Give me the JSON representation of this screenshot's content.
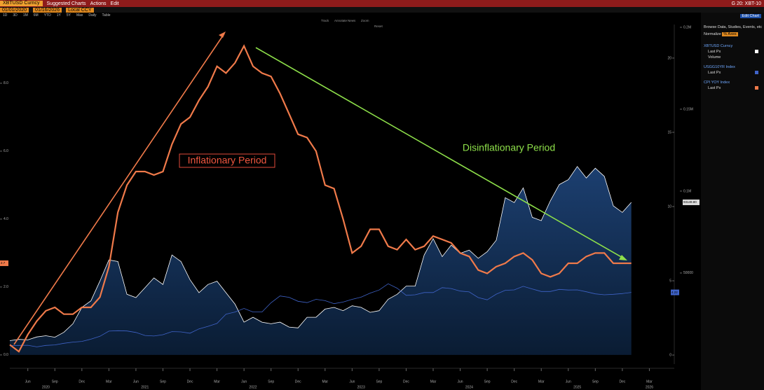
{
  "toolbar": {
    "security": "XBTUSD Curncy",
    "menus": [
      "Suggested Charts",
      "Actions",
      "Edit"
    ],
    "right": "G 20: XBT-10"
  },
  "dates": {
    "start": "01/01/2020",
    "end": "01/16/2026",
    "currency": "Local CCY"
  },
  "periods": [
    "1D",
    "3D",
    "1M",
    "6M",
    "YTD",
    "1Y",
    "5Y",
    "Max",
    "Daily",
    "Table"
  ],
  "chart_tools": [
    "Track",
    "Annotate",
    "News",
    "Zoom",
    "Reset"
  ],
  "panel": {
    "edit": "Edit Chart",
    "browse": "Browse Data, Studies, Events, etc",
    "normalize": "Normalize",
    "axes": "% Axes",
    "fields": [
      [
        "Last Px",
        "Volume"
      ],
      [
        "Last Px"
      ],
      [
        "Last Px"
      ]
    ]
  },
  "chart_data": {
    "type": "line",
    "annotations": [
      "Inflationary Period",
      "Disinflationary Period"
    ],
    "x": [
      "2020-04",
      "2020-05",
      "2020-06",
      "2020-07",
      "2020-08",
      "2020-09",
      "2020-10",
      "2020-11",
      "2020-12",
      "2021-01",
      "2021-02",
      "2021-03",
      "2021-04",
      "2021-05",
      "2021-06",
      "2021-07",
      "2021-08",
      "2021-09",
      "2021-10",
      "2021-11",
      "2021-12",
      "2022-01",
      "2022-02",
      "2022-03",
      "2022-04",
      "2022-05",
      "2022-06",
      "2022-07",
      "2022-08",
      "2022-09",
      "2022-10",
      "2022-11",
      "2022-12",
      "2023-01",
      "2023-02",
      "2023-03",
      "2023-04",
      "2023-05",
      "2023-06",
      "2023-07",
      "2023-08",
      "2023-09",
      "2023-10",
      "2023-11",
      "2023-12",
      "2024-01",
      "2024-02",
      "2024-03",
      "2024-04",
      "2024-05",
      "2024-06",
      "2024-07",
      "2024-08",
      "2024-09",
      "2024-10",
      "2024-11",
      "2024-12",
      "2025-01",
      "2025-02",
      "2025-03",
      "2025-04",
      "2025-05",
      "2025-06",
      "2025-07",
      "2025-08",
      "2025-09",
      "2025-10",
      "2025-11",
      "2025-12",
      "2026-01"
    ],
    "xlim": [
      "2020-04",
      "2026-06"
    ],
    "xticks": [
      {
        "value": "2020-06",
        "label": "Jun"
      },
      {
        "value": "2020-09",
        "label": "Sep"
      },
      {
        "value": "2020-12",
        "label": "Dec"
      },
      {
        "value": "2021-03",
        "label": "Mar"
      },
      {
        "value": "2021-06",
        "label": "Jun"
      },
      {
        "value": "2021-09",
        "label": "Sep"
      },
      {
        "value": "2021-12",
        "label": "Dec"
      },
      {
        "value": "2022-03",
        "label": "Mar"
      },
      {
        "value": "2022-06",
        "label": "Jun"
      },
      {
        "value": "2022-09",
        "label": "Sep"
      },
      {
        "value": "2022-12",
        "label": "Dec"
      },
      {
        "value": "2023-03",
        "label": "Mar"
      },
      {
        "value": "2023-06",
        "label": "Jun"
      },
      {
        "value": "2023-09",
        "label": "Sep"
      },
      {
        "value": "2023-12",
        "label": "Dec"
      },
      {
        "value": "2024-03",
        "label": "Mar"
      },
      {
        "value": "2024-06",
        "label": "Jun"
      },
      {
        "value": "2024-09",
        "label": "Sep"
      },
      {
        "value": "2024-12",
        "label": "Dec"
      },
      {
        "value": "2025-03",
        "label": "Mar"
      },
      {
        "value": "2025-06",
        "label": "Jun"
      },
      {
        "value": "2025-09",
        "label": "Sep"
      },
      {
        "value": "2025-12",
        "label": "Dec"
      },
      {
        "value": "2026-03",
        "label": "Mar"
      }
    ],
    "year_ticks": [
      {
        "value": "2020-08",
        "label": "2020"
      },
      {
        "value": "2021-07",
        "label": "2021"
      },
      {
        "value": "2022-07",
        "label": "2022"
      },
      {
        "value": "2023-07",
        "label": "2023"
      },
      {
        "value": "2024-07",
        "label": "2024"
      },
      {
        "value": "2025-07",
        "label": "2025"
      },
      {
        "value": "2026-03",
        "label": "2026"
      }
    ],
    "ylim": [
      -0.27,
      9.73
    ],
    "yticks": [
      {
        "value": 0,
        "label": "0.0"
      },
      {
        "value": 2,
        "label": "2.0"
      },
      {
        "value": 4,
        "label": "4.0"
      },
      {
        "value": 6,
        "label": "6.0"
      },
      {
        "value": 8,
        "label": "8.0"
      }
    ],
    "y2lim": [
      -0.61,
      22.26
    ],
    "y2ticks": [
      0,
      5,
      10,
      15,
      20
    ],
    "y3lim": [
      -5600,
      201700
    ],
    "y3ticks": [
      50000,
      {
        "value": 100000,
        "label": "0.1M"
      },
      {
        "value": 150000,
        "label": "0.15M"
      },
      {
        "value": 200000,
        "label": "0.2M"
      }
    ],
    "series": [
      {
        "name": "XBTUSD Curncy",
        "color": "#ffffff",
        "axis": "y3",
        "values": [
          8700,
          9500,
          9200,
          11000,
          11700,
          10800,
          13800,
          19000,
          29000,
          33000,
          45000,
          58000,
          57000,
          37000,
          35000,
          41000,
          47000,
          43000,
          61000,
          57000,
          46000,
          38000,
          43000,
          45000,
          38000,
          31000,
          20000,
          23000,
          20000,
          19000,
          20000,
          17000,
          16500,
          23000,
          23000,
          28000,
          29000,
          27000,
          30000,
          29000,
          26000,
          27000,
          34000,
          37000,
          42000,
          42000,
          61000,
          71000,
          60000,
          67000,
          62000,
          64000,
          59000,
          63000,
          70000,
          96000,
          93000,
          102000,
          84000,
          82000,
          94000,
          104000,
          107000,
          115000,
          108000,
          114000,
          109000,
          91000,
          87000,
          93149.8
        ],
        "value_labels": [
          null,
          null,
          null,
          null,
          null,
          null,
          null,
          null,
          null,
          null,
          null,
          null,
          null,
          null,
          null,
          null,
          null,
          null,
          null,
          null,
          null,
          null,
          null,
          null,
          null,
          null,
          null,
          null,
          null,
          null,
          null,
          null,
          null,
          null,
          null,
          null,
          null,
          null,
          null,
          null,
          null,
          null,
          null,
          null,
          null,
          null,
          null,
          null,
          null,
          null,
          null,
          null,
          null,
          null,
          null,
          null,
          null,
          null,
          null,
          null,
          null,
          null,
          null,
          null,
          null,
          null,
          null,
          null,
          null,
          "93149.80"
        ]
      },
      {
        "name": "USGG10YR Index",
        "color": "#3f63c8",
        "axis": "y2",
        "values": [
          0.64,
          0.65,
          0.66,
          0.55,
          0.65,
          0.68,
          0.79,
          0.87,
          0.92,
          1.07,
          1.26,
          1.61,
          1.64,
          1.62,
          1.52,
          1.32,
          1.28,
          1.37,
          1.58,
          1.56,
          1.47,
          1.76,
          1.93,
          2.13,
          2.75,
          2.9,
          3.14,
          2.9,
          2.9,
          3.52,
          3.98,
          3.89,
          3.62,
          3.53,
          3.75,
          3.66,
          3.46,
          3.57,
          3.75,
          3.9,
          4.17,
          4.38,
          4.8,
          4.5,
          4.02,
          4.06,
          4.21,
          4.21,
          4.54,
          4.48,
          4.31,
          4.25,
          3.87,
          3.72,
          4.1,
          4.36,
          4.39,
          4.63,
          4.45,
          4.28,
          4.28,
          4.42,
          4.38,
          4.39,
          4.26,
          4.12,
          4.06,
          4.09,
          4.14,
          4.22
        ]
      },
      {
        "name": "CPI YOY Index",
        "color": "#f07a4a",
        "values": [
          0.3,
          0.1,
          0.6,
          1.0,
          1.3,
          1.4,
          1.2,
          1.2,
          1.4,
          1.4,
          1.7,
          2.6,
          4.2,
          5.0,
          5.4,
          5.4,
          5.3,
          5.4,
          6.2,
          6.8,
          7.0,
          7.5,
          7.9,
          8.5,
          8.3,
          8.6,
          9.1,
          8.5,
          8.3,
          8.2,
          7.7,
          7.1,
          6.5,
          6.4,
          6.0,
          5.0,
          4.9,
          4.0,
          3.0,
          3.2,
          3.7,
          3.7,
          3.2,
          3.1,
          3.4,
          3.1,
          3.2,
          3.5,
          3.4,
          3.3,
          3.0,
          2.9,
          2.5,
          2.4,
          2.6,
          2.7,
          2.9,
          3.0,
          2.8,
          2.4,
          2.3,
          2.4,
          2.7,
          2.7,
          2.9,
          3.0,
          3.0,
          2.7,
          2.7,
          2.7
        ]
      }
    ]
  }
}
